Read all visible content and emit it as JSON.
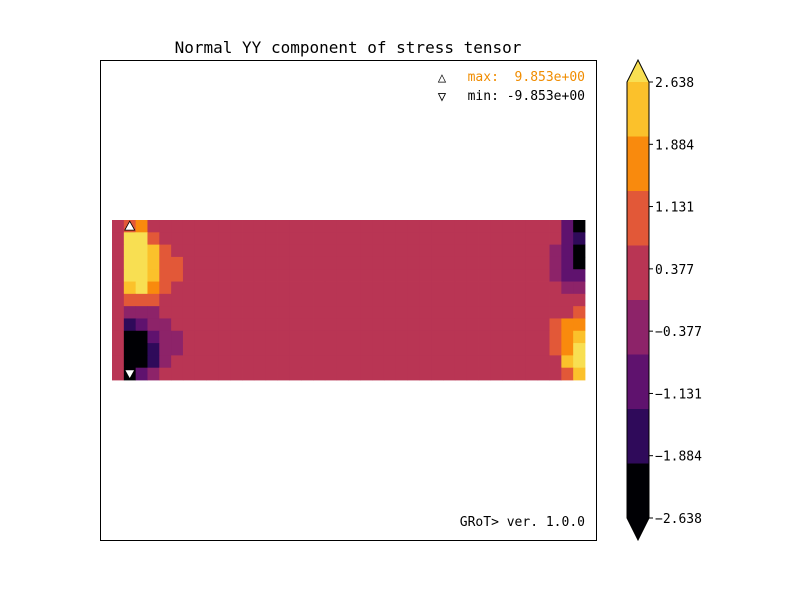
{
  "chart_data": {
    "type": "heatmap",
    "title": "Normal YY component of stress tensor",
    "annotations": {
      "max_marker": "△",
      "max_text": "max:  9.853e+00",
      "min_marker": "▽",
      "min_text": "min: -9.853e+00",
      "version": "GRoT> ver. 1.0.0"
    },
    "colorbar": {
      "tick_labels": [
        "2.638",
        "1.884",
        "1.131",
        "0.377",
        "−0.377",
        "−1.131",
        "−1.884",
        "−2.638"
      ],
      "tick_values": [
        2.638,
        1.884,
        1.131,
        0.377,
        -0.377,
        -1.131,
        -1.884,
        -2.638
      ],
      "colors": [
        "#fbc12b",
        "#f98a0d",
        "#e25838",
        "#b93554",
        "#8d2369",
        "#5f126e",
        "#2f0a5a",
        "#000004"
      ],
      "extend_max_color": "#f8df52",
      "extend_min_color": "#000004"
    },
    "grid": {
      "cols": 40,
      "rows": 13
    },
    "value_levels": [
      -3.0,
      -2.26,
      -1.5,
      -0.75,
      0.0,
      0.75,
      1.5,
      2.26,
      3.0
    ],
    "values": [
      [
        0.0,
        0.75,
        1.5,
        0,
        0,
        0,
        0,
        0,
        0,
        0,
        0,
        0,
        0,
        0,
        0,
        0,
        0,
        0,
        0,
        0,
        0,
        0,
        0,
        0,
        0,
        0,
        0,
        0,
        0,
        0,
        0,
        0,
        0,
        0,
        0,
        0,
        0,
        0,
        -1.5,
        -3.0
      ],
      [
        0.0,
        3.0,
        3.0,
        0.75,
        0,
        0,
        0,
        0,
        0,
        0,
        0,
        0,
        0,
        0,
        0,
        0,
        0,
        0,
        0,
        0,
        0,
        0,
        0,
        0,
        0,
        0,
        0,
        0,
        0,
        0,
        0,
        0,
        0,
        0,
        0,
        0,
        0,
        0,
        -1.5,
        -2.26
      ],
      [
        0.0,
        3.0,
        3.0,
        2.26,
        0.75,
        0,
        0,
        0,
        0,
        0,
        0,
        0,
        0,
        0,
        0,
        0,
        0,
        0,
        0,
        0,
        0,
        0,
        0,
        0,
        0,
        0,
        0,
        0,
        0,
        0,
        0,
        0,
        0,
        0,
        0,
        0,
        0,
        -0.75,
        -1.5,
        -3.0
      ],
      [
        0.0,
        3.0,
        3.0,
        2.26,
        0.75,
        0.75,
        0,
        0,
        0,
        0,
        0,
        0,
        0,
        0,
        0,
        0,
        0,
        0,
        0,
        0,
        0,
        0,
        0,
        0,
        0,
        0,
        0,
        0,
        0,
        0,
        0,
        0,
        0,
        0,
        0,
        0,
        0,
        -0.75,
        -1.5,
        -3.0
      ],
      [
        0.0,
        3.0,
        3.0,
        2.26,
        0.75,
        0.75,
        0,
        0,
        0,
        0,
        0,
        0,
        0,
        0,
        0,
        0,
        0,
        0,
        0,
        0,
        0,
        0,
        0,
        0,
        0,
        0,
        0,
        0,
        0,
        0,
        0,
        0,
        0,
        0,
        0,
        0,
        0,
        -0.75,
        -1.5,
        -1.5
      ],
      [
        0.0,
        2.26,
        3.0,
        1.5,
        0.75,
        0,
        0,
        0,
        0,
        0,
        0,
        0,
        0,
        0,
        0,
        0,
        0,
        0,
        0,
        0,
        0,
        0,
        0,
        0,
        0,
        0,
        0,
        0,
        0,
        0,
        0,
        0,
        0,
        0,
        0,
        0,
        0,
        0,
        -0.75,
        -0.75
      ],
      [
        0.0,
        0.75,
        0.75,
        0.75,
        0,
        0,
        0,
        0,
        0,
        0,
        0,
        0,
        0,
        0,
        0,
        0,
        0,
        0,
        0,
        0,
        0,
        0,
        0,
        0,
        0,
        0,
        0,
        0,
        0,
        0,
        0,
        0,
        0,
        0,
        0,
        0,
        0,
        0,
        0,
        0.0
      ],
      [
        0.0,
        -0.75,
        -0.75,
        -0.75,
        0,
        0,
        0,
        0,
        0,
        0,
        0,
        0,
        0,
        0,
        0,
        0,
        0,
        0,
        0,
        0,
        0,
        0,
        0,
        0,
        0,
        0,
        0,
        0,
        0,
        0,
        0,
        0,
        0,
        0,
        0,
        0,
        0,
        0,
        0,
        0.75
      ],
      [
        0.0,
        -2.26,
        -1.5,
        -0.75,
        -0.75,
        0,
        0,
        0,
        0,
        0,
        0,
        0,
        0,
        0,
        0,
        0,
        0,
        0,
        0,
        0,
        0,
        0,
        0,
        0,
        0,
        0,
        0,
        0,
        0,
        0,
        0,
        0,
        0,
        0,
        0,
        0,
        0,
        0.75,
        1.5,
        1.5
      ],
      [
        0.0,
        -3.0,
        -3.0,
        -1.5,
        -0.75,
        -0.75,
        0,
        0,
        0,
        0,
        0,
        0,
        0,
        0,
        0,
        0,
        0,
        0,
        0,
        0,
        0,
        0,
        0,
        0,
        0,
        0,
        0,
        0,
        0,
        0,
        0,
        0,
        0,
        0,
        0,
        0,
        0,
        0.75,
        1.5,
        2.26
      ],
      [
        0.0,
        -3.0,
        -3.0,
        -2.26,
        -0.75,
        -0.75,
        0,
        0,
        0,
        0,
        0,
        0,
        0,
        0,
        0,
        0,
        0,
        0,
        0,
        0,
        0,
        0,
        0,
        0,
        0,
        0,
        0,
        0,
        0,
        0,
        0,
        0,
        0,
        0,
        0,
        0,
        0,
        0.75,
        1.5,
        3.0
      ],
      [
        0.0,
        -3.0,
        -3.0,
        -2.26,
        -0.75,
        0,
        0,
        0,
        0,
        0,
        0,
        0,
        0,
        0,
        0,
        0,
        0,
        0,
        0,
        0,
        0,
        0,
        0,
        0,
        0,
        0,
        0,
        0,
        0,
        0,
        0,
        0,
        0,
        0,
        0,
        0,
        0,
        0,
        2.26,
        3.0
      ],
      [
        0.0,
        -3.0,
        -1.5,
        -0.75,
        0,
        0,
        0,
        0,
        0,
        0,
        0,
        0,
        0,
        0,
        0,
        0,
        0,
        0,
        0,
        0,
        0,
        0,
        0,
        0,
        0,
        0,
        0,
        0,
        0,
        0,
        0,
        0,
        0,
        0,
        0,
        0,
        0,
        0,
        0.75,
        2.26
      ]
    ],
    "max_marker_cell": {
      "col": 1,
      "row": 0
    },
    "min_marker_cell": {
      "col": 1,
      "row": 12
    }
  }
}
